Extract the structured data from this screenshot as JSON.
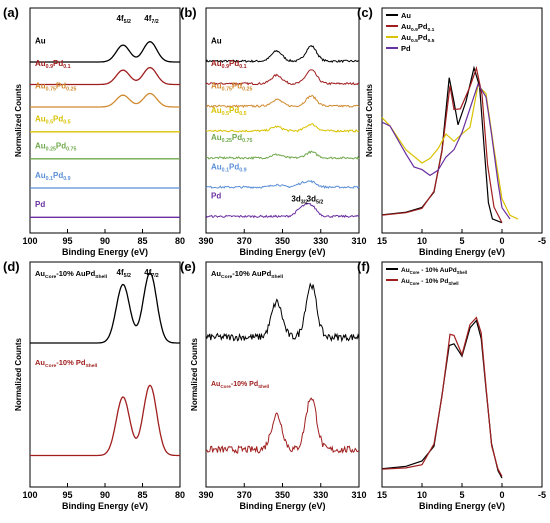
{
  "colors": {
    "Au": "#000000",
    "Au0.9Pd0.1": "#a01e1e",
    "Au0.75Pd0.25": "#d08a2e",
    "Au0.5Pd0.5": "#d9c200",
    "Au0.25Pd0.75": "#6fa84a",
    "Au0.1Pd0.9": "#5b8fd6",
    "Pd": "#6a2fa0",
    "shell_Pd": "#a01e1e"
  },
  "chart_data": [
    {
      "panel": "(a)",
      "type": "line",
      "xlabel": "Binding Energy (eV)",
      "ylabel": "Normalized Counts",
      "xlim": [
        100,
        80
      ],
      "xticks": [
        "100",
        "95",
        "90",
        "85",
        "80"
      ],
      "annotations": [
        {
          "text": "4f",
          "sub": "5/2",
          "x": 87.5
        },
        {
          "text": "4f",
          "sub": "7/2",
          "x": 83.8
        }
      ],
      "series": [
        {
          "label": [
            "Au",
            ""
          ],
          "colorKey": "Au",
          "peaks": [
            [
              87.6,
              1.0
            ],
            [
              84.0,
              1.2
            ]
          ]
        },
        {
          "label": [
            "Au",
            "0.9",
            "Pd",
            "0.1"
          ],
          "colorKey": "Au0.9Pd0.1",
          "peaks": [
            [
              87.6,
              0.85
            ],
            [
              84.0,
              1.0
            ]
          ]
        },
        {
          "label": [
            "Au",
            "0.75",
            "Pd",
            "0.25"
          ],
          "colorKey": "Au0.75Pd0.25",
          "peaks": [
            [
              87.6,
              0.7
            ],
            [
              84.0,
              0.8
            ]
          ]
        },
        {
          "label": [
            "Au",
            "0.5",
            "Pd",
            "0.5"
          ],
          "colorKey": "Au0.5Pd0.5",
          "peaks": []
        },
        {
          "label": [
            "Au",
            "0.25",
            "Pd",
            "0.75"
          ],
          "colorKey": "Au0.25Pd0.75",
          "peaks": []
        },
        {
          "label": [
            "Au",
            "0.1",
            "Pd",
            "0.9"
          ],
          "colorKey": "Au0.1Pd0.9",
          "peaks": []
        },
        {
          "label": [
            "Pd",
            ""
          ],
          "colorKey": "Pd",
          "peaks": []
        }
      ]
    },
    {
      "panel": "(b)",
      "type": "line",
      "xlabel": "Binding Energy (eV)",
      "ylabel": "",
      "xlim": [
        390,
        310
      ],
      "xticks": [
        "390",
        "370",
        "350",
        "330",
        "310"
      ],
      "annotations": [
        {
          "text": "3d",
          "sub": "3/2",
          "x": 341
        },
        {
          "text": "3d",
          "sub": "5/2",
          "x": 333
        }
      ],
      "series": [
        {
          "label": [
            "Au",
            ""
          ],
          "colorKey": "Au",
          "peaks": [
            [
              353,
              0.6
            ],
            [
              335,
              0.9
            ]
          ]
        },
        {
          "label": [
            "Au",
            "0.9",
            "Pd",
            "0.1"
          ],
          "colorKey": "Au0.9Pd0.1",
          "peaks": [
            [
              353,
              0.5
            ],
            [
              335,
              0.8
            ]
          ]
        },
        {
          "label": [
            "Au",
            "0.75",
            "Pd",
            "0.25"
          ],
          "colorKey": "Au0.75Pd0.25",
          "peaks": [
            [
              353,
              0.4
            ],
            [
              335,
              0.6
            ]
          ]
        },
        {
          "label": [
            "Au",
            "0.5",
            "Pd",
            "0.5"
          ],
          "colorKey": "Au0.5Pd0.5",
          "peaks": [
            [
              353,
              0.25
            ],
            [
              335,
              0.4
            ]
          ]
        },
        {
          "label": [
            "Au",
            "0.25",
            "Pd",
            "0.75"
          ],
          "colorKey": "Au0.25Pd0.75",
          "peaks": [
            [
              353,
              0.2
            ],
            [
              335,
              0.35
            ]
          ]
        },
        {
          "label": [
            "Au",
            "0.1",
            "Pd",
            "0.9"
          ],
          "colorKey": "Au0.1Pd0.9",
          "peaks": [
            [
              353,
              0.15
            ],
            [
              340,
              0.2
            ],
            [
              335,
              0.3
            ]
          ]
        },
        {
          "label": [
            "Pd",
            ""
          ],
          "colorKey": "Pd",
          "peaks": [
            [
              340,
              0.45
            ],
            [
              335,
              0.6
            ]
          ]
        }
      ]
    },
    {
      "panel": "(c)",
      "type": "line",
      "xlabel": "Binding Energy (eV)",
      "ylabel": "Normalized Counts",
      "xlim": [
        15,
        -5
      ],
      "xticks": [
        "15",
        "10",
        "5",
        "0",
        "-5"
      ],
      "legend": [
        {
          "label": [
            "Au",
            ""
          ],
          "colorKey": "Au"
        },
        {
          "label": [
            "Au",
            "0.9",
            "Pd",
            "0.1"
          ],
          "colorKey": "Au0.9Pd0.1"
        },
        {
          "label": [
            "Au",
            "0.5",
            "Pd",
            "0.5"
          ],
          "colorKey": "Au0.5Pd0.5"
        },
        {
          "label": [
            "Pd",
            ""
          ],
          "colorKey": "Pd"
        }
      ],
      "series": [
        {
          "colorKey": "Au",
          "points": [
            [
              15,
              0.05
            ],
            [
              12,
              0.07
            ],
            [
              10,
              0.1
            ],
            [
              8.5,
              0.2
            ],
            [
              7.5,
              0.45
            ],
            [
              6.6,
              0.9
            ],
            [
              6.0,
              0.75
            ],
            [
              5.5,
              0.6
            ],
            [
              4.5,
              0.75
            ],
            [
              3.5,
              0.95
            ],
            [
              2.8,
              0.85
            ],
            [
              2.2,
              0.45
            ],
            [
              1.7,
              0.12
            ],
            [
              1.2,
              0.03
            ],
            [
              0,
              0.0
            ]
          ]
        },
        {
          "colorKey": "Au0.9Pd0.1",
          "points": [
            [
              15,
              0.05
            ],
            [
              12,
              0.06
            ],
            [
              10,
              0.09
            ],
            [
              8.5,
              0.2
            ],
            [
              7.5,
              0.45
            ],
            [
              6.5,
              0.85
            ],
            [
              6.0,
              0.7
            ],
            [
              5.2,
              0.7
            ],
            [
              4.0,
              0.85
            ],
            [
              3.2,
              0.95
            ],
            [
              2.5,
              0.8
            ],
            [
              1.8,
              0.35
            ],
            [
              1.0,
              0.1
            ],
            [
              0,
              0.0
            ]
          ]
        },
        {
          "colorKey": "Au0.5Pd0.5",
          "points": [
            [
              15,
              0.65
            ],
            [
              14,
              0.6
            ],
            [
              12,
              0.45
            ],
            [
              10,
              0.38
            ],
            [
              9,
              0.4
            ],
            [
              8,
              0.45
            ],
            [
              7,
              0.55
            ],
            [
              6,
              0.5
            ],
            [
              5,
              0.55
            ],
            [
              4,
              0.6
            ],
            [
              3,
              0.85
            ],
            [
              2,
              0.8
            ],
            [
              1.0,
              0.45
            ],
            [
              0,
              0.15
            ],
            [
              -1,
              0.05
            ],
            [
              -2,
              0.03
            ]
          ]
        },
        {
          "colorKey": "Pd",
          "points": [
            [
              15,
              0.63
            ],
            [
              14,
              0.6
            ],
            [
              12,
              0.42
            ],
            [
              11,
              0.35
            ],
            [
              10,
              0.32
            ],
            [
              9,
              0.3
            ],
            [
              8,
              0.33
            ],
            [
              7,
              0.4
            ],
            [
              6,
              0.45
            ],
            [
              5,
              0.55
            ],
            [
              4,
              0.7
            ],
            [
              3,
              0.85
            ],
            [
              2,
              0.78
            ],
            [
              1.3,
              0.55
            ],
            [
              0.5,
              0.25
            ],
            [
              0,
              0.1
            ],
            [
              -1,
              0.02
            ]
          ]
        }
      ]
    },
    {
      "panel": "(d)",
      "type": "line",
      "xlabel": "Binding Energy (eV)",
      "ylabel": "Normalized Counts",
      "xlim": [
        100,
        80
      ],
      "xticks": [
        "100",
        "95",
        "90",
        "85",
        "80"
      ],
      "annotations": [
        {
          "text": "4f",
          "sub": "5/2",
          "x": 87.5
        },
        {
          "text": "4f",
          "sub": "7/2",
          "x": 83.8
        }
      ],
      "series": [
        {
          "label": [
            "Au",
            "Core",
            "-10% AuPd",
            "Shell"
          ],
          "colorKey": "Au",
          "peaks": [
            [
              87.6,
              1.0
            ],
            [
              84.0,
              1.2
            ]
          ]
        },
        {
          "label": [
            "Au",
            "Core",
            "-10% Pd",
            "Shell"
          ],
          "colorKey": "shell_Pd",
          "peaks": [
            [
              87.6,
              1.0
            ],
            [
              84.0,
              1.2
            ]
          ]
        }
      ]
    },
    {
      "panel": "(e)",
      "type": "line",
      "xlabel": "Binding Energy (eV)",
      "ylabel": "Normalized Counts",
      "xlim": [
        390,
        310
      ],
      "xticks": [
        "390",
        "370",
        "350",
        "330",
        "310"
      ],
      "series": [
        {
          "label": [
            "Au",
            "Core",
            "-10% AuPd",
            "Shell"
          ],
          "colorKey": "Au",
          "peaks": [
            [
              353,
              0.6
            ],
            [
              335,
              0.9
            ]
          ]
        },
        {
          "label": [
            "Au",
            "Core",
            "-10% Pd",
            "Shell"
          ],
          "colorKey": "shell_Pd",
          "peaks": [
            [
              353,
              0.6
            ],
            [
              335,
              0.9
            ]
          ]
        }
      ]
    },
    {
      "panel": "(f)",
      "type": "line",
      "xlabel": "Binding Energy (eV)",
      "ylabel": "",
      "xlim": [
        15,
        -5
      ],
      "xticks": [
        "15",
        "10",
        "5",
        "0",
        "-5"
      ],
      "legend": [
        {
          "label": [
            "Au",
            "Core",
            " - 10% AuPd",
            "Shell"
          ],
          "colorKey": "Au"
        },
        {
          "label": [
            "Au",
            "Core",
            " - 10% Pd",
            "Shell"
          ],
          "colorKey": "shell_Pd"
        }
      ],
      "series": [
        {
          "colorKey": "Au",
          "points": [
            [
              15,
              0.05
            ],
            [
              12,
              0.06
            ],
            [
              10,
              0.1
            ],
            [
              8.5,
              0.2
            ],
            [
              7.5,
              0.5
            ],
            [
              6.6,
              0.82
            ],
            [
              6.0,
              0.82
            ],
            [
              5.0,
              0.75
            ],
            [
              4.0,
              0.93
            ],
            [
              3.2,
              0.96
            ],
            [
              2.6,
              0.85
            ],
            [
              2.0,
              0.55
            ],
            [
              1.3,
              0.2
            ],
            [
              0.5,
              0.04
            ],
            [
              0,
              0.0
            ]
          ]
        },
        {
          "colorKey": "shell_Pd",
          "points": [
            [
              15,
              0.04
            ],
            [
              12,
              0.05
            ],
            [
              10,
              0.08
            ],
            [
              8.5,
              0.2
            ],
            [
              7.5,
              0.5
            ],
            [
              6.5,
              0.88
            ],
            [
              6.0,
              0.87
            ],
            [
              5.0,
              0.75
            ],
            [
              4.0,
              0.95
            ],
            [
              3.2,
              0.98
            ],
            [
              2.6,
              0.88
            ],
            [
              2.0,
              0.55
            ],
            [
              1.3,
              0.2
            ],
            [
              0.5,
              0.04
            ],
            [
              0,
              0.0
            ]
          ]
        }
      ]
    }
  ]
}
